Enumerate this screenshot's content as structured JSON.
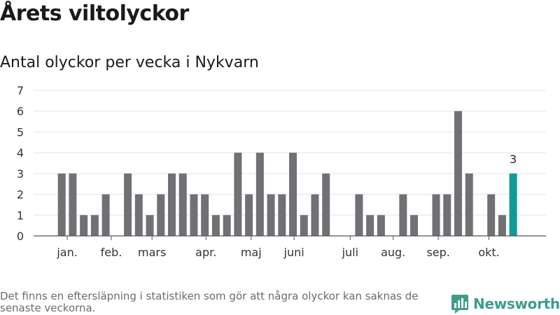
{
  "title": "Årets viltolyckor",
  "subtitle": "Antal olyckor per vecka i Nykvarn",
  "footnote": "Det finns en eftersläpning i statistiken som gör att några olyckor kan saknas de senaste veckorna.",
  "brand": {
    "name": "Newsworthy",
    "color": "#3a9e8a",
    "icon": "newsworthy-logo-icon"
  },
  "colors": {
    "bar": "#717075",
    "highlight": "#0e9c94",
    "grid": "#e3e3e3",
    "axis": "#555555"
  },
  "chart_data": {
    "type": "bar",
    "title": "Årets viltolyckor",
    "subtitle": "Antal olyckor per vecka i Nykvarn",
    "xlabel": "",
    "ylabel": "",
    "ylim": [
      0,
      7
    ],
    "yticks": [
      0,
      1,
      2,
      3,
      4,
      5,
      6,
      7
    ],
    "grid": true,
    "x": [
      1,
      2,
      3,
      4,
      5,
      6,
      7,
      8,
      9,
      10,
      11,
      12,
      13,
      14,
      15,
      16,
      17,
      18,
      19,
      20,
      21,
      22,
      23,
      24,
      25,
      26,
      27,
      28,
      29,
      30,
      31,
      32,
      33,
      34,
      35,
      36,
      37,
      38,
      39,
      40,
      41,
      42
    ],
    "values": [
      3,
      3,
      1,
      1,
      2,
      0,
      3,
      2,
      1,
      2,
      3,
      3,
      2,
      2,
      1,
      1,
      4,
      2,
      4,
      2,
      2,
      4,
      1,
      2,
      3,
      0,
      0,
      2,
      1,
      1,
      0,
      2,
      1,
      0,
      2,
      2,
      6,
      3,
      0,
      2,
      1,
      3
    ],
    "month_labels": [
      {
        "label": "jan.",
        "x": 1.5
      },
      {
        "label": "feb.",
        "x": 5.5
      },
      {
        "label": "mars",
        "x": 9.2
      },
      {
        "label": "apr.",
        "x": 14.1
      },
      {
        "label": "maj",
        "x": 18.2
      },
      {
        "label": "juni",
        "x": 22.1
      },
      {
        "label": "juli",
        "x": 27.2
      },
      {
        "label": "aug.",
        "x": 31.1
      },
      {
        "label": "sep.",
        "x": 35.2
      },
      {
        "label": "okt.",
        "x": 39.8
      }
    ],
    "highlight": {
      "x": 42,
      "label": "3"
    }
  }
}
